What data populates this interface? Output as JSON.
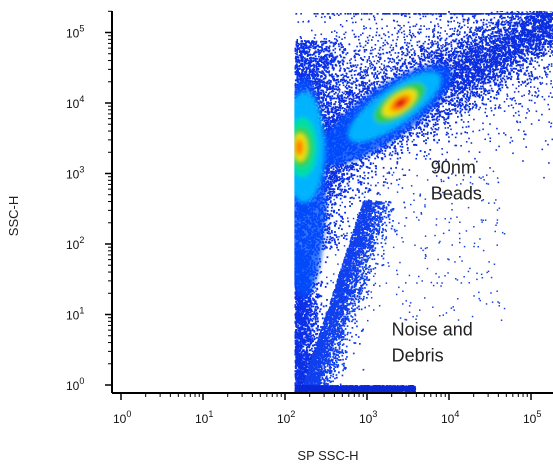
{
  "chart_data": {
    "type": "scatter",
    "subtype": "flow-cytometry-density-dot-plot",
    "title": "",
    "xlabel": "SP SSC-H",
    "ylabel": "SSC-H",
    "x_scale": "log",
    "y_scale": "log",
    "xlim": [
      0.5,
      200000
    ],
    "ylim": [
      0.9,
      250000
    ],
    "x_ticks": [
      {
        "value": 1,
        "base": "10",
        "exp": "0"
      },
      {
        "value": 10,
        "base": "10",
        "exp": "1"
      },
      {
        "value": 100,
        "base": "10",
        "exp": "2"
      },
      {
        "value": 1000,
        "base": "10",
        "exp": "3"
      },
      {
        "value": 10000,
        "base": "10",
        "exp": "4"
      },
      {
        "value": 100000,
        "base": "10",
        "exp": "5"
      }
    ],
    "y_ticks": [
      {
        "value": 1,
        "base": "10",
        "exp": "0"
      },
      {
        "value": 10,
        "base": "10",
        "exp": "1"
      },
      {
        "value": 100,
        "base": "10",
        "exp": "2"
      },
      {
        "value": 1000,
        "base": "10",
        "exp": "3"
      },
      {
        "value": 10000,
        "base": "10",
        "exp": "4"
      },
      {
        "value": 100000,
        "base": "10",
        "exp": "5"
      }
    ],
    "threshold_x": 130,
    "grid": false,
    "legend": "none",
    "colormap": [
      "#0000cc",
      "#0050ff",
      "#00bfff",
      "#00e0a0",
      "#30d040",
      "#f0e000",
      "#ff8000",
      "#e01010"
    ],
    "populations": [
      {
        "label_lines": [
          "90nm",
          "Beads"
        ],
        "x_center": 2500,
        "y_center": 10000
      },
      {
        "label_lines": [
          "Noise and",
          "Debris"
        ],
        "x_center": 150,
        "y_center": 2000
      }
    ],
    "annotations": [
      {
        "lines": [
          "90nm",
          "Beads"
        ],
        "x": 6000,
        "y": 1000
      },
      {
        "lines": [
          "Noise and",
          "Debris"
        ],
        "x": 2000,
        "y": 5
      }
    ]
  }
}
